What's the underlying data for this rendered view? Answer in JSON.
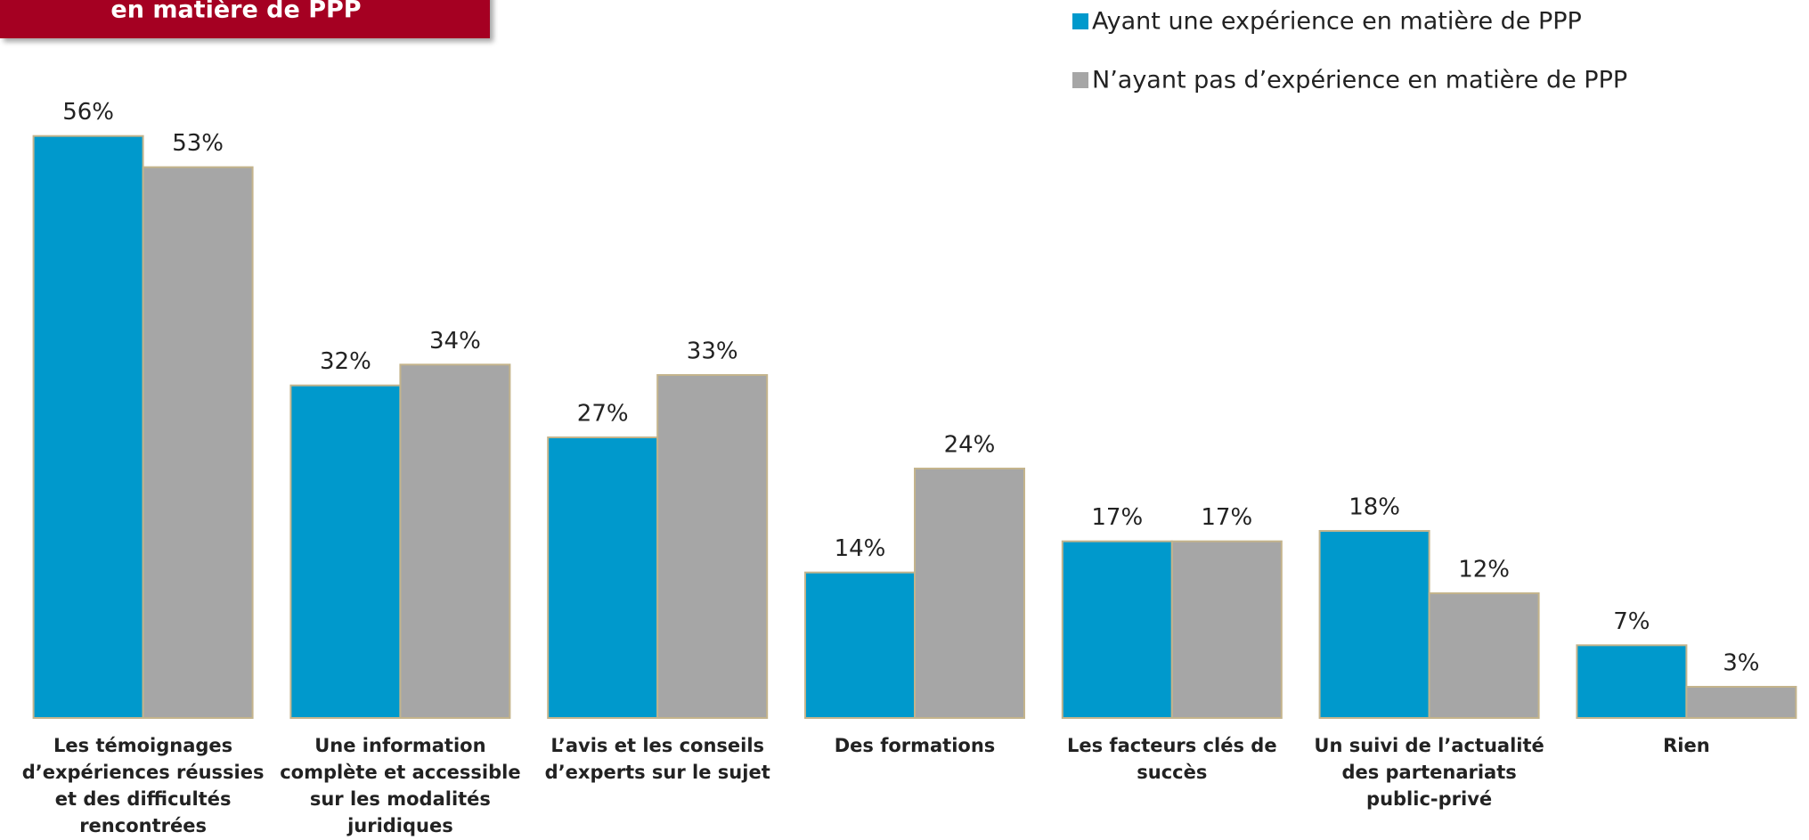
{
  "chart_data": {
    "type": "bar",
    "title": "en matière de PPP",
    "categories": [
      "Les témoignages\nd’expériences réussies\net des difficultés\nrencontrées",
      "Une information\ncomplète et accessible\nsur les modalités\njuridiques",
      "L’avis et les conseils\nd’experts sur le sujet",
      "Des formations",
      "Les facteurs clés de\nsuccès",
      "Un suivi de l’actualité\ndes partenariats\npublic-privé",
      "Rien"
    ],
    "series": [
      {
        "name": "Ayant une expérience en matière de PPP",
        "color": "#0099cc",
        "values": [
          56,
          32,
          27,
          14,
          17,
          18,
          7
        ],
        "value_labels": [
          "56%",
          "32%",
          "27%",
          "14%",
          "17%",
          "18%",
          "7%"
        ]
      },
      {
        "name": "N’ayant pas d’expérience en matière de PPP",
        "color": "#a6a6a6",
        "values": [
          53,
          34,
          33,
          24,
          17,
          12,
          3
        ],
        "value_labels": [
          "53%",
          "34%",
          "33%",
          "24%",
          "17%",
          "12%",
          "3%"
        ]
      }
    ],
    "ylim": [
      0,
      60
    ],
    "legend": "top-right"
  }
}
